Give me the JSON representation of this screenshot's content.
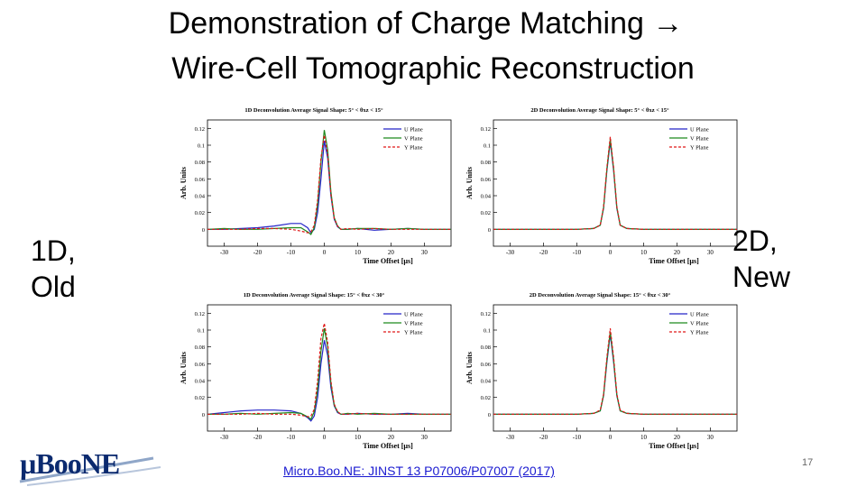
{
  "slide": {
    "title_line1": "Demonstration of Charge Matching →",
    "title_line2": "Wire-Cell Tomographic Reconstruction",
    "left_label_line1": "1D,",
    "left_label_line2": "Old",
    "right_label_line1": "2D,",
    "right_label_line2": "New",
    "reference": "Micro.Boo.NE: JINST 13 P07006/P07007 (2017)",
    "page_number": "17",
    "logo_text": "µBooNE"
  },
  "colors": {
    "u_plane": "#2424c8",
    "v_plane": "#1e8a1e",
    "y_plane": "#e01818",
    "link": "#1a1ad0"
  },
  "chart_data": [
    {
      "type": "line",
      "title": "1D Deconvolution Average Signal Shape:  5° < θxz < 15°",
      "xlabel": "Time Offset [µs]",
      "ylabel": "Arb. Units",
      "xlim": [
        -35,
        38
      ],
      "ylim": [
        -0.02,
        0.13
      ],
      "xticks": [
        -30,
        -20,
        -10,
        0,
        10,
        20,
        30
      ],
      "yticks": [
        0,
        0.02,
        0.04,
        0.06,
        0.08,
        0.1,
        0.12
      ],
      "ytick_labels": [
        "0",
        "0.02",
        "0.04",
        "0.06",
        "0.08",
        "0.1",
        "0.12"
      ],
      "legend_position": "top-right",
      "series": [
        {
          "name": "U Plane",
          "x": [
            -35,
            -30,
            -25,
            -20,
            -15,
            -10,
            -7,
            -5,
            -4,
            -3,
            -2,
            -1,
            0,
            1,
            2,
            3,
            4,
            5,
            7,
            10,
            15,
            20,
            25,
            30,
            38
          ],
          "y": [
            0.0,
            0.0,
            0.001,
            0.002,
            0.004,
            0.007,
            0.007,
            0.002,
            -0.004,
            0.0,
            0.02,
            0.06,
            0.105,
            0.085,
            0.04,
            0.012,
            0.003,
            0.0,
            0.0,
            0.001,
            -0.001,
            0.0,
            0.001,
            0.0,
            0.0
          ]
        },
        {
          "name": "V Plane",
          "x": [
            -35,
            -30,
            -25,
            -20,
            -15,
            -10,
            -7,
            -5,
            -4,
            -3,
            -2,
            -1,
            0,
            1,
            2,
            3,
            4,
            5,
            7,
            10,
            15,
            20,
            25,
            30,
            38
          ],
          "y": [
            0.0,
            0.001,
            0.0,
            0.0,
            0.001,
            0.002,
            0.002,
            -0.003,
            -0.006,
            0.002,
            0.03,
            0.08,
            0.118,
            0.095,
            0.045,
            0.014,
            0.004,
            0.0,
            0.0,
            0.001,
            0.001,
            0.0,
            0.001,
            0.0,
            0.0
          ]
        },
        {
          "name": "Y Plane",
          "x": [
            -35,
            -30,
            -25,
            -20,
            -15,
            -10,
            -7,
            -5,
            -4,
            -3,
            -2,
            -1,
            0,
            1,
            2,
            3,
            4,
            5,
            7,
            10,
            15,
            20,
            25,
            30,
            38
          ],
          "y": [
            0.0,
            0.0,
            0.0,
            0.001,
            0.001,
            0.0,
            -0.002,
            -0.004,
            -0.003,
            0.005,
            0.035,
            0.085,
            0.112,
            0.09,
            0.042,
            0.013,
            0.004,
            0.0,
            0.001,
            0.0,
            0.001,
            0.0,
            0.0,
            0.0,
            0.0
          ]
        }
      ]
    },
    {
      "type": "line",
      "title": "2D Deconvolution Average Signal Shape:  5° < θxz < 15°",
      "xlabel": "Time Offset [µs]",
      "ylabel": "Arb. Units",
      "xlim": [
        -35,
        38
      ],
      "ylim": [
        -0.02,
        0.13
      ],
      "xticks": [
        -30,
        -20,
        -10,
        0,
        10,
        20,
        30
      ],
      "yticks": [
        0,
        0.02,
        0.04,
        0.06,
        0.08,
        0.1,
        0.12
      ],
      "ytick_labels": [
        "0",
        "0.02",
        "0.04",
        "0.06",
        "0.08",
        "0.1",
        "0.12"
      ],
      "legend_position": "top-right",
      "series": [
        {
          "name": "U Plane",
          "x": [
            -35,
            -10,
            -5,
            -3,
            -2,
            -1,
            0,
            1,
            2,
            3,
            5,
            10,
            38
          ],
          "y": [
            0.0,
            0.0,
            0.001,
            0.005,
            0.025,
            0.07,
            0.104,
            0.07,
            0.025,
            0.005,
            0.001,
            0.0,
            0.0
          ]
        },
        {
          "name": "V Plane",
          "x": [
            -35,
            -10,
            -5,
            -3,
            -2,
            -1,
            0,
            1,
            2,
            3,
            5,
            10,
            38
          ],
          "y": [
            0.0,
            0.0,
            0.001,
            0.005,
            0.026,
            0.072,
            0.107,
            0.072,
            0.026,
            0.005,
            0.001,
            0.0,
            0.0
          ]
        },
        {
          "name": "Y Plane",
          "x": [
            -35,
            -10,
            -5,
            -3,
            -2,
            -1,
            0,
            1,
            2,
            3,
            5,
            10,
            38
          ],
          "y": [
            0.0,
            0.0,
            0.001,
            0.005,
            0.027,
            0.074,
            0.11,
            0.074,
            0.027,
            0.005,
            0.001,
            0.0,
            0.0
          ]
        }
      ]
    },
    {
      "type": "line",
      "title": "1D Deconvolution Average Signal Shape:  15° < θxz < 30°",
      "xlabel": "Time Offset [µs]",
      "ylabel": "Arb. Units",
      "xlim": [
        -35,
        38
      ],
      "ylim": [
        -0.02,
        0.13
      ],
      "xticks": [
        -30,
        -20,
        -10,
        0,
        10,
        20,
        30
      ],
      "yticks": [
        0,
        0.02,
        0.04,
        0.06,
        0.08,
        0.1,
        0.12
      ],
      "ytick_labels": [
        "0",
        "0.02",
        "0.04",
        "0.06",
        "0.08",
        "0.1",
        "0.12"
      ],
      "legend_position": "top-right",
      "series": [
        {
          "name": "U Plane",
          "x": [
            -35,
            -30,
            -25,
            -20,
            -15,
            -10,
            -7,
            -5,
            -4,
            -3,
            -2,
            -1,
            0,
            1,
            2,
            3,
            4,
            5,
            7,
            10,
            15,
            20,
            25,
            30,
            38
          ],
          "y": [
            0.0,
            0.002,
            0.004,
            0.005,
            0.005,
            0.004,
            0.001,
            -0.004,
            -0.008,
            -0.002,
            0.02,
            0.06,
            0.088,
            0.07,
            0.032,
            0.01,
            0.002,
            0.0,
            0.0,
            0.001,
            0.0,
            0.0,
            0.001,
            0.0,
            0.0
          ]
        },
        {
          "name": "V Plane",
          "x": [
            -35,
            -30,
            -25,
            -20,
            -15,
            -10,
            -7,
            -5,
            -4,
            -3,
            -2,
            -1,
            0,
            1,
            2,
            3,
            4,
            5,
            7,
            10,
            15,
            20,
            25,
            30,
            38
          ],
          "y": [
            0.0,
            0.0,
            0.001,
            0.0,
            0.001,
            0.002,
            0.001,
            -0.003,
            -0.006,
            0.003,
            0.03,
            0.075,
            0.102,
            0.08,
            0.037,
            0.011,
            0.003,
            0.0,
            0.001,
            0.0,
            0.001,
            0.0,
            0.0,
            0.0,
            0.0
          ]
        },
        {
          "name": "Y Plane",
          "x": [
            -35,
            -30,
            -25,
            -20,
            -15,
            -10,
            -7,
            -5,
            -4,
            -3,
            -2,
            -1,
            0,
            1,
            2,
            3,
            4,
            5,
            7,
            10,
            15,
            20,
            25,
            30,
            38
          ],
          "y": [
            0.0,
            0.0,
            0.0,
            0.001,
            0.0,
            0.0,
            -0.001,
            -0.003,
            -0.002,
            0.006,
            0.04,
            0.09,
            0.108,
            0.086,
            0.04,
            0.012,
            0.003,
            0.0,
            0.0,
            0.001,
            0.0,
            0.0,
            0.0,
            0.0,
            0.0
          ]
        }
      ]
    },
    {
      "type": "line",
      "title": "2D Deconvolution Average Signal Shape:  15° < θxz < 30°",
      "xlabel": "Time Offset [µs]",
      "ylabel": "Arb. Units",
      "xlim": [
        -35,
        38
      ],
      "ylim": [
        -0.02,
        0.13
      ],
      "xticks": [
        -30,
        -20,
        -10,
        0,
        10,
        20,
        30
      ],
      "yticks": [
        0,
        0.02,
        0.04,
        0.06,
        0.08,
        0.1,
        0.12
      ],
      "ytick_labels": [
        "0",
        "0.02",
        "0.04",
        "0.06",
        "0.08",
        "0.1",
        "0.12"
      ],
      "legend_position": "top-right",
      "series": [
        {
          "name": "U Plane",
          "x": [
            -35,
            -10,
            -5,
            -3,
            -2,
            -1,
            0,
            1,
            2,
            3,
            5,
            10,
            38
          ],
          "y": [
            0.0,
            0.0,
            0.001,
            0.004,
            0.022,
            0.062,
            0.095,
            0.062,
            0.022,
            0.004,
            0.001,
            0.0,
            0.0
          ]
        },
        {
          "name": "V Plane",
          "x": [
            -35,
            -10,
            -5,
            -3,
            -2,
            -1,
            0,
            1,
            2,
            3,
            5,
            10,
            38
          ],
          "y": [
            0.0,
            0.0,
            0.001,
            0.004,
            0.023,
            0.065,
            0.098,
            0.065,
            0.023,
            0.004,
            0.001,
            0.0,
            0.0
          ]
        },
        {
          "name": "Y Plane",
          "x": [
            -35,
            -10,
            -5,
            -3,
            -2,
            -1,
            0,
            1,
            2,
            3,
            5,
            10,
            38
          ],
          "y": [
            0.0,
            0.0,
            0.001,
            0.005,
            0.024,
            0.068,
            0.102,
            0.068,
            0.024,
            0.005,
            0.001,
            0.0,
            0.0
          ]
        }
      ]
    }
  ]
}
